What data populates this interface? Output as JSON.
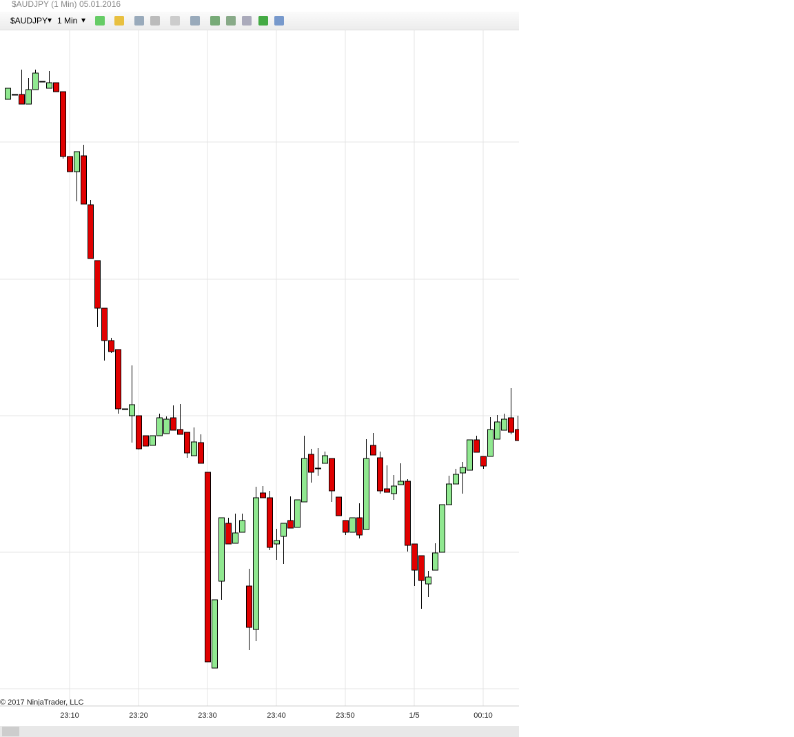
{
  "window": {
    "title": "$AUDJPY (1 Min)",
    "date": "05.01.2016"
  },
  "toolbar": {
    "instrument": "$AUDJPY",
    "interval": "1 Min"
  },
  "copyright": "© 2017 NinjaTrader, LLC",
  "chart_data": {
    "type": "candlestick",
    "categories": [
      null,
      null,
      null,
      null,
      null,
      null,
      null,
      null,
      null,
      "23:10",
      null,
      null,
      null,
      null,
      null,
      null,
      null,
      null,
      null,
      "23:20",
      null,
      null,
      null,
      null,
      null,
      null,
      null,
      null,
      null,
      "23:30",
      null,
      null,
      null,
      null,
      null,
      null,
      null,
      null,
      null,
      "23:40",
      null,
      null,
      null,
      null,
      null,
      null,
      null,
      null,
      null,
      "23:50",
      null,
      null,
      null,
      null,
      null,
      null,
      null,
      null,
      null,
      "1/5",
      null,
      null,
      null,
      null,
      null,
      null,
      null,
      null,
      null,
      "00:10",
      null,
      null,
      null,
      null,
      null
    ],
    "open": [
      855,
      862,
      862,
      848,
      869,
      881,
      871,
      879,
      866,
      772,
      750,
      773,
      702,
      621,
      552,
      505,
      492,
      406,
      396,
      396,
      367,
      353,
      367,
      370,
      393,
      376,
      372,
      338,
      357,
      314,
      30,
      156,
      240,
      211,
      227,
      149,
      86,
      284,
      277,
      210,
      221,
      244,
      234,
      271,
      340,
      320,
      327,
      334,
      278,
      244,
      227,
      248,
      231,
      353,
      335,
      290,
      283,
      296,
      301,
      210,
      193,
      152,
      172,
      198,
      267,
      297,
      313,
      317,
      361,
      337,
      337,
      362,
      375,
      393,
      376
    ],
    "high": [
      871,
      862,
      898,
      886,
      898,
      881,
      896,
      879,
      866,
      772,
      779,
      789,
      709,
      621,
      552,
      509,
      492,
      406,
      469,
      396,
      367,
      367,
      399,
      395,
      411,
      413,
      372,
      379,
      369,
      314,
      129,
      248,
      248,
      254,
      254,
      174,
      293,
      294,
      287,
      232,
      240,
      279,
      274,
      367,
      348,
      349,
      344,
      334,
      278,
      244,
      248,
      269,
      362,
      371,
      344,
      324,
      310,
      327,
      304,
      210,
      193,
      171,
      211,
      267,
      309,
      319,
      329,
      361,
      367,
      337,
      394,
      397,
      399,
      436,
      396
    ],
    "low": [
      855,
      862,
      848,
      848,
      869,
      881,
      871,
      866,
      769,
      750,
      707,
      703,
      624,
      525,
      476,
      487,
      399,
      406,
      357,
      347,
      352,
      353,
      367,
      370,
      375,
      369,
      335,
      338,
      327,
      39,
      30,
      129,
      210,
      211,
      227,
      56,
      69,
      277,
      201,
      187,
      181,
      233,
      234,
      271,
      299,
      309,
      327,
      271,
      251,
      223,
      227,
      218,
      231,
      339,
      283,
      285,
      274,
      296,
      199,
      149,
      116,
      133,
      172,
      198,
      267,
      297,
      283,
      317,
      343,
      319,
      337,
      362,
      375,
      369,
      360
    ],
    "close": [
      871,
      862,
      848,
      869,
      893,
      881,
      879,
      866,
      772,
      750,
      779,
      703,
      624,
      552,
      505,
      489,
      406,
      406,
      412,
      348,
      352,
      367,
      393,
      391,
      375,
      369,
      342,
      358,
      327,
      39,
      129,
      248,
      210,
      226,
      244,
      89,
      277,
      277,
      205,
      215,
      240,
      233,
      274,
      334,
      314,
      320,
      338,
      287,
      251,
      227,
      248,
      223,
      334,
      339,
      287,
      285,
      294,
      301,
      208,
      172,
      157,
      162,
      197,
      267,
      297,
      311,
      321,
      361,
      343,
      323,
      376,
      387,
      391,
      372,
      360
    ],
    "up_color": "#90e890",
    "down_color": "#e00000",
    "wick_color": "#000000",
    "ylim": [
      -25,
      956
    ],
    "yticks": [
      0,
      198,
      396,
      594,
      793
    ],
    "grid": true
  }
}
